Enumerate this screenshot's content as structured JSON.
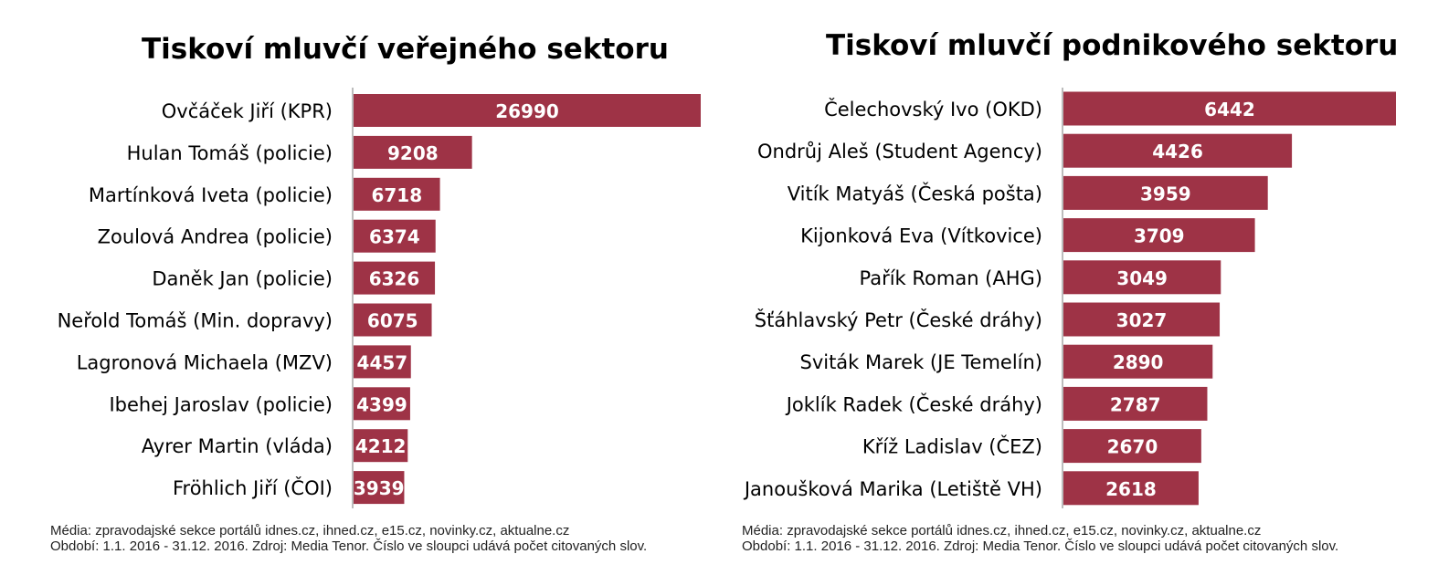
{
  "charts": [
    {
      "title": "Tiskoví mluvčí veřejného sektoru",
      "note_line1": "Média: zpravodajské sekce portálů idnes.cz, ihned.cz, e15.cz, novinky.cz, aktualne.cz",
      "note_line2": "Období: 1.1. 2016 - 31.12. 2016. Zdroj: Media Tenor. Číslo ve sloupci udává počet citovaných slov."
    },
    {
      "title": "Tiskoví mluvčí podnikového sektoru",
      "note_line1": "Média: zpravodajské sekce portálů idnes.cz, ihned.cz, e15.cz, novinky.cz, aktualne.cz",
      "note_line2": "Období: 1.1. 2016 - 31.12. 2016. Zdroj: Media Tenor. Číslo ve sloupci udává počet citovaných slov."
    }
  ],
  "colors": {
    "bar": "#9e3346",
    "bar_label": "#ffffff",
    "axis": "#a6a6a6",
    "category_text": "#000000"
  },
  "chart_data": [
    {
      "type": "bar",
      "orientation": "horizontal",
      "title": "Tiskoví mluvčí veřejného sektoru",
      "categories": [
        "Ovčáček Jiří (KPR)",
        "Hulan Tomáš (policie)",
        "Martínková Iveta (policie)",
        "Zoulová Andrea (policie)",
        "Daněk Jan (policie)",
        "Neřold Tomáš (Min. dopravy)",
        "Lagronová Michaela (MZV)",
        "Ibehej Jaroslav (policie)",
        "Ayrer Martin (vláda)",
        "Fröhlich Jiří (ČOI)"
      ],
      "values": [
        26990,
        9208,
        6718,
        6374,
        6326,
        6075,
        4457,
        4399,
        4212,
        3939
      ],
      "data_labels": true,
      "xlim": [
        0,
        26990
      ],
      "grid": false,
      "legend": "none"
    },
    {
      "type": "bar",
      "orientation": "horizontal",
      "title": "Tiskoví mluvčí podnikového sektoru",
      "categories": [
        "Čelechovský Ivo (OKD)",
        "Ondrůj Aleš (Student Agency)",
        "Vitík Matyáš (Česká pošta)",
        "Kijonková Eva (Vítkovice)",
        "Pařík Roman (AHG)",
        "Šťáhlavský Petr (České dráhy)",
        "Sviták Marek (JE Temelín)",
        "Joklík Radek (České dráhy)",
        "Kříž Ladislav (ČEZ)",
        "Janoušková Marika (Letiště VH)"
      ],
      "values": [
        6442,
        4426,
        3959,
        3709,
        3049,
        3027,
        2890,
        2787,
        2670,
        2618
      ],
      "data_labels": true,
      "xlim": [
        0,
        6442
      ],
      "grid": false,
      "legend": "none"
    }
  ]
}
